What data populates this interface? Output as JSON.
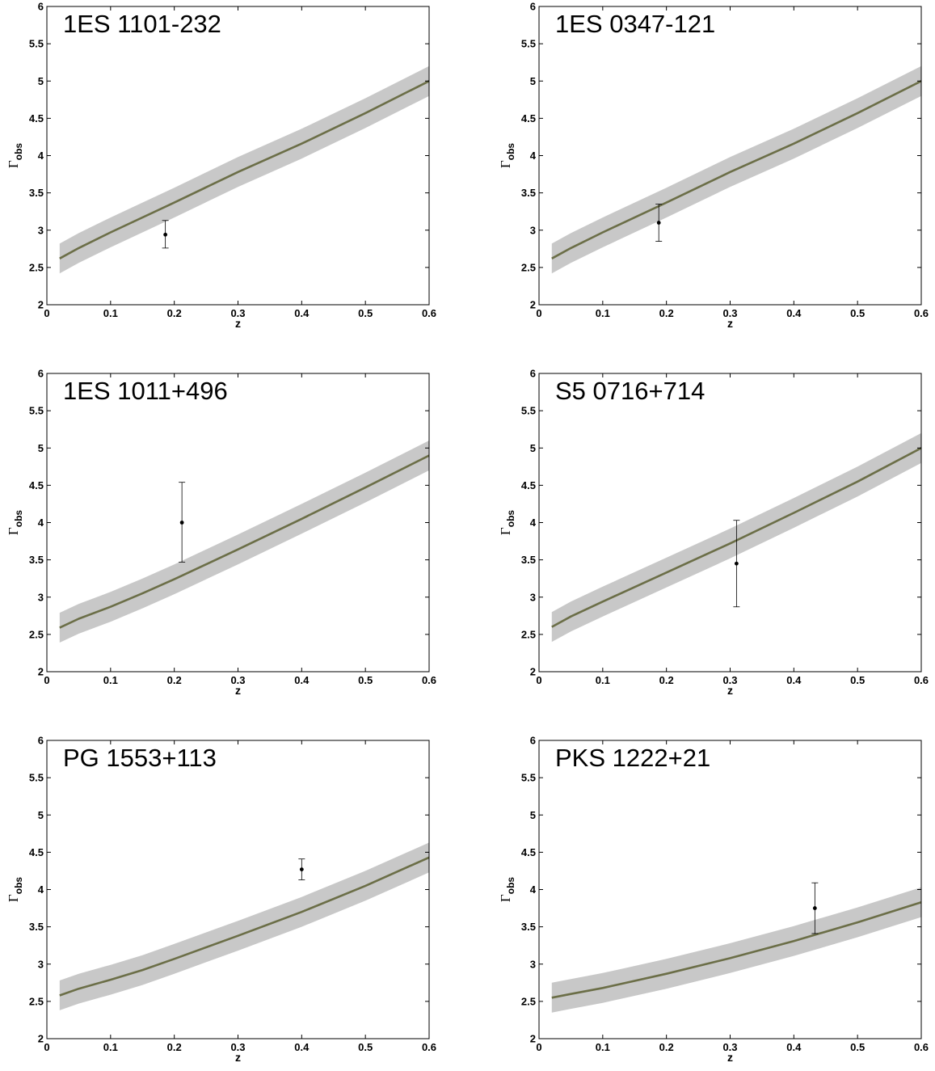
{
  "figure": {
    "colors": {
      "band": "#c8c8c8",
      "line": "#6b6e47",
      "point": "#000000",
      "axes": "#000000"
    }
  },
  "chart_data": [
    {
      "type": "line",
      "title": "1ES 1101-232",
      "xlabel": "z",
      "ylabel": "Γobs",
      "ylabel_main": "Γ",
      "ylabel_sub": "obs",
      "xlim": [
        0,
        0.6
      ],
      "ylim": [
        2,
        6
      ],
      "xticks": [
        0,
        0.1,
        0.2,
        0.3,
        0.4,
        0.5,
        0.6
      ],
      "yticks": [
        2,
        2.5,
        3,
        3.5,
        4,
        4.5,
        5,
        5.5,
        6
      ],
      "xtick_labels": [
        "0",
        "0.1",
        "0.2",
        "0.3",
        "0.4",
        "0.5",
        "0.6"
      ],
      "ytick_labels": [
        "2",
        "2.5",
        "3",
        "3.5",
        "4",
        "4.5",
        "5",
        "5.5",
        "6"
      ],
      "grid": false,
      "series": [
        {
          "x": [
            0.02,
            0.05,
            0.1,
            0.2,
            0.3,
            0.4,
            0.5,
            0.6
          ],
          "y": [
            2.62,
            2.76,
            2.97,
            3.37,
            3.78,
            4.16,
            4.57,
            5.0
          ],
          "band_half_width": 0.2
        }
      ],
      "points": [
        {
          "x": 0.186,
          "y": 2.94,
          "y_low": 2.76,
          "y_high": 3.13
        }
      ]
    },
    {
      "type": "line",
      "title": "1ES 0347-121",
      "xlabel": "z",
      "ylabel": "Γobs",
      "ylabel_main": "Γ",
      "ylabel_sub": "obs",
      "xlim": [
        0,
        0.6
      ],
      "ylim": [
        2,
        6
      ],
      "xticks": [
        0,
        0.1,
        0.2,
        0.3,
        0.4,
        0.5,
        0.6
      ],
      "yticks": [
        2,
        2.5,
        3,
        3.5,
        4,
        4.5,
        5,
        5.5,
        6
      ],
      "xtick_labels": [
        "0",
        "0.1",
        "0.2",
        "0.3",
        "0.4",
        "0.5",
        "0.6"
      ],
      "ytick_labels": [
        "2",
        "2.5",
        "3",
        "3.5",
        "4",
        "4.5",
        "5",
        "5.5",
        "6"
      ],
      "grid": false,
      "series": [
        {
          "x": [
            0.02,
            0.05,
            0.1,
            0.2,
            0.3,
            0.4,
            0.5,
            0.6
          ],
          "y": [
            2.62,
            2.76,
            2.97,
            3.37,
            3.78,
            4.16,
            4.57,
            5.0
          ],
          "band_half_width": 0.2
        }
      ],
      "points": [
        {
          "x": 0.188,
          "y": 3.1,
          "y_low": 2.85,
          "y_high": 3.35
        }
      ]
    },
    {
      "type": "line",
      "title": "1ES 1011+496",
      "xlabel": "z",
      "ylabel": "Γobs",
      "ylabel_main": "Γ",
      "ylabel_sub": "obs",
      "xlim": [
        0,
        0.6
      ],
      "ylim": [
        2,
        6
      ],
      "xticks": [
        0,
        0.1,
        0.2,
        0.3,
        0.4,
        0.5,
        0.6
      ],
      "yticks": [
        2,
        2.5,
        3,
        3.5,
        4,
        4.5,
        5,
        5.5,
        6
      ],
      "xtick_labels": [
        "0",
        "0.1",
        "0.2",
        "0.3",
        "0.4",
        "0.5",
        "0.6"
      ],
      "ytick_labels": [
        "2",
        "2.5",
        "3",
        "3.5",
        "4",
        "4.5",
        "5",
        "5.5",
        "6"
      ],
      "grid": false,
      "series": [
        {
          "x": [
            0.02,
            0.05,
            0.1,
            0.15,
            0.2,
            0.3,
            0.4,
            0.5,
            0.6
          ],
          "y": [
            2.59,
            2.71,
            2.87,
            3.05,
            3.24,
            3.64,
            4.05,
            4.47,
            4.9
          ],
          "band_half_width": 0.2
        }
      ],
      "points": [
        {
          "x": 0.212,
          "y": 4.0,
          "y_low": 3.47,
          "y_high": 4.54
        }
      ]
    },
    {
      "type": "line",
      "title": "S5 0716+714",
      "xlabel": "z",
      "ylabel": "Γobs",
      "ylabel_main": "Γ",
      "ylabel_sub": "obs",
      "xlim": [
        0,
        0.6
      ],
      "ylim": [
        2,
        6
      ],
      "xticks": [
        0,
        0.1,
        0.2,
        0.3,
        0.4,
        0.5,
        0.6
      ],
      "yticks": [
        2,
        2.5,
        3,
        3.5,
        4,
        4.5,
        5,
        5.5,
        6
      ],
      "xtick_labels": [
        "0",
        "0.1",
        "0.2",
        "0.3",
        "0.4",
        "0.5",
        "0.6"
      ],
      "ytick_labels": [
        "2",
        "2.5",
        "3",
        "3.5",
        "4",
        "4.5",
        "5",
        "5.5",
        "6"
      ],
      "grid": false,
      "series": [
        {
          "x": [
            0.02,
            0.05,
            0.1,
            0.2,
            0.3,
            0.4,
            0.5,
            0.6
          ],
          "y": [
            2.6,
            2.74,
            2.94,
            3.33,
            3.72,
            4.13,
            4.55,
            5.0
          ],
          "band_half_width": 0.2
        }
      ],
      "points": [
        {
          "x": 0.31,
          "y": 3.45,
          "y_low": 2.87,
          "y_high": 4.03
        }
      ]
    },
    {
      "type": "line",
      "title": "PG 1553+113",
      "xlabel": "z",
      "ylabel": "Γobs",
      "ylabel_main": "Γ",
      "ylabel_sub": "obs",
      "xlim": [
        0,
        0.6
      ],
      "ylim": [
        2,
        6
      ],
      "xticks": [
        0,
        0.1,
        0.2,
        0.3,
        0.4,
        0.5,
        0.6
      ],
      "yticks": [
        2,
        2.5,
        3,
        3.5,
        4,
        4.5,
        5,
        5.5,
        6
      ],
      "xtick_labels": [
        "0",
        "0.1",
        "0.2",
        "0.3",
        "0.4",
        "0.5",
        "0.6"
      ],
      "ytick_labels": [
        "2",
        "2.5",
        "3",
        "3.5",
        "4",
        "4.5",
        "5",
        "5.5",
        "6"
      ],
      "grid": false,
      "series": [
        {
          "x": [
            0.02,
            0.05,
            0.1,
            0.15,
            0.2,
            0.3,
            0.4,
            0.5,
            0.6
          ],
          "y": [
            2.58,
            2.67,
            2.79,
            2.92,
            3.07,
            3.38,
            3.7,
            4.05,
            4.43
          ],
          "band_half_width": 0.2
        }
      ],
      "points": [
        {
          "x": 0.4,
          "y": 4.27,
          "y_low": 4.13,
          "y_high": 4.41
        }
      ]
    },
    {
      "type": "line",
      "title": "PKS 1222+21",
      "xlabel": "z",
      "ylabel": "Γobs",
      "ylabel_main": "Γ",
      "ylabel_sub": "obs",
      "xlim": [
        0,
        0.6
      ],
      "ylim": [
        2,
        6
      ],
      "xticks": [
        0,
        0.1,
        0.2,
        0.3,
        0.4,
        0.5,
        0.6
      ],
      "yticks": [
        2,
        2.5,
        3,
        3.5,
        4,
        4.5,
        5,
        5.5,
        6
      ],
      "xtick_labels": [
        "0",
        "0.1",
        "0.2",
        "0.3",
        "0.4",
        "0.5",
        "0.6"
      ],
      "ytick_labels": [
        "2",
        "2.5",
        "3",
        "3.5",
        "4",
        "4.5",
        "5",
        "5.5",
        "6"
      ],
      "grid": false,
      "series": [
        {
          "x": [
            0.02,
            0.05,
            0.1,
            0.2,
            0.3,
            0.4,
            0.5,
            0.6
          ],
          "y": [
            2.55,
            2.6,
            2.68,
            2.87,
            3.08,
            3.31,
            3.56,
            3.83
          ],
          "band_half_width": 0.2
        }
      ],
      "points": [
        {
          "x": 0.433,
          "y": 3.75,
          "y_low": 3.41,
          "y_high": 4.09
        }
      ]
    }
  ]
}
